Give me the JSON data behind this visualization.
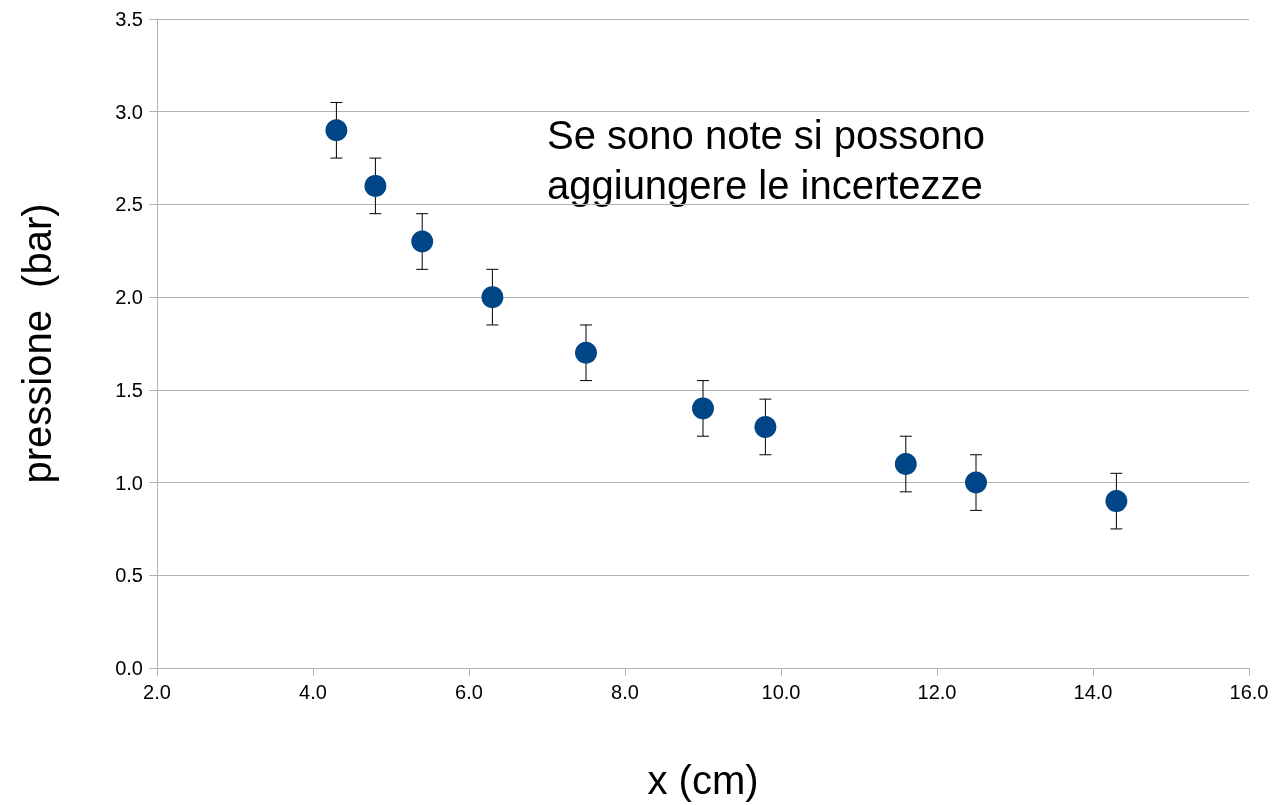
{
  "chart_data": {
    "type": "scatter",
    "xlabel": "x (cm)",
    "ylabel": "pressione  (bar)",
    "x": [
      4.3,
      4.8,
      5.4,
      6.3,
      7.5,
      9.0,
      9.8,
      11.6,
      12.5,
      14.3
    ],
    "series": [
      {
        "color": "#004586",
        "values": [
          2.9,
          2.6,
          2.3,
          2.0,
          1.7,
          1.4,
          1.3,
          1.1,
          1.0,
          0.9
        ],
        "errors": [
          0.15,
          0.15,
          0.15,
          0.15,
          0.15,
          0.15,
          0.15,
          0.15,
          0.15,
          0.15
        ]
      }
    ],
    "xlim": [
      2,
      16
    ],
    "xticks": [
      {
        "value": 2,
        "label": "2.0"
      },
      {
        "value": 4,
        "label": "4.0"
      },
      {
        "value": 6,
        "label": "6.0"
      },
      {
        "value": 8,
        "label": "8.0"
      },
      {
        "value": 10,
        "label": "10.0"
      },
      {
        "value": 12,
        "label": "12.0"
      },
      {
        "value": 14,
        "label": "14.0"
      },
      {
        "value": 16,
        "label": "16.0"
      }
    ],
    "ylim": [
      0,
      3.5
    ],
    "yticks": [
      {
        "value": 0,
        "label": "0.0"
      },
      {
        "value": 0.5,
        "label": "0.5"
      },
      {
        "value": 1,
        "label": "1.0"
      },
      {
        "value": 1.5,
        "label": "1.5"
      },
      {
        "value": 2,
        "label": "2.0"
      },
      {
        "value": 2.5,
        "label": "2.5"
      },
      {
        "value": 3,
        "label": "3.0"
      },
      {
        "value": 3.5,
        "label": "3.5"
      }
    ],
    "grid": "y",
    "marker": "circle",
    "annotations": [
      "Se sono note si possono\naggiungere le incertezze"
    ]
  }
}
